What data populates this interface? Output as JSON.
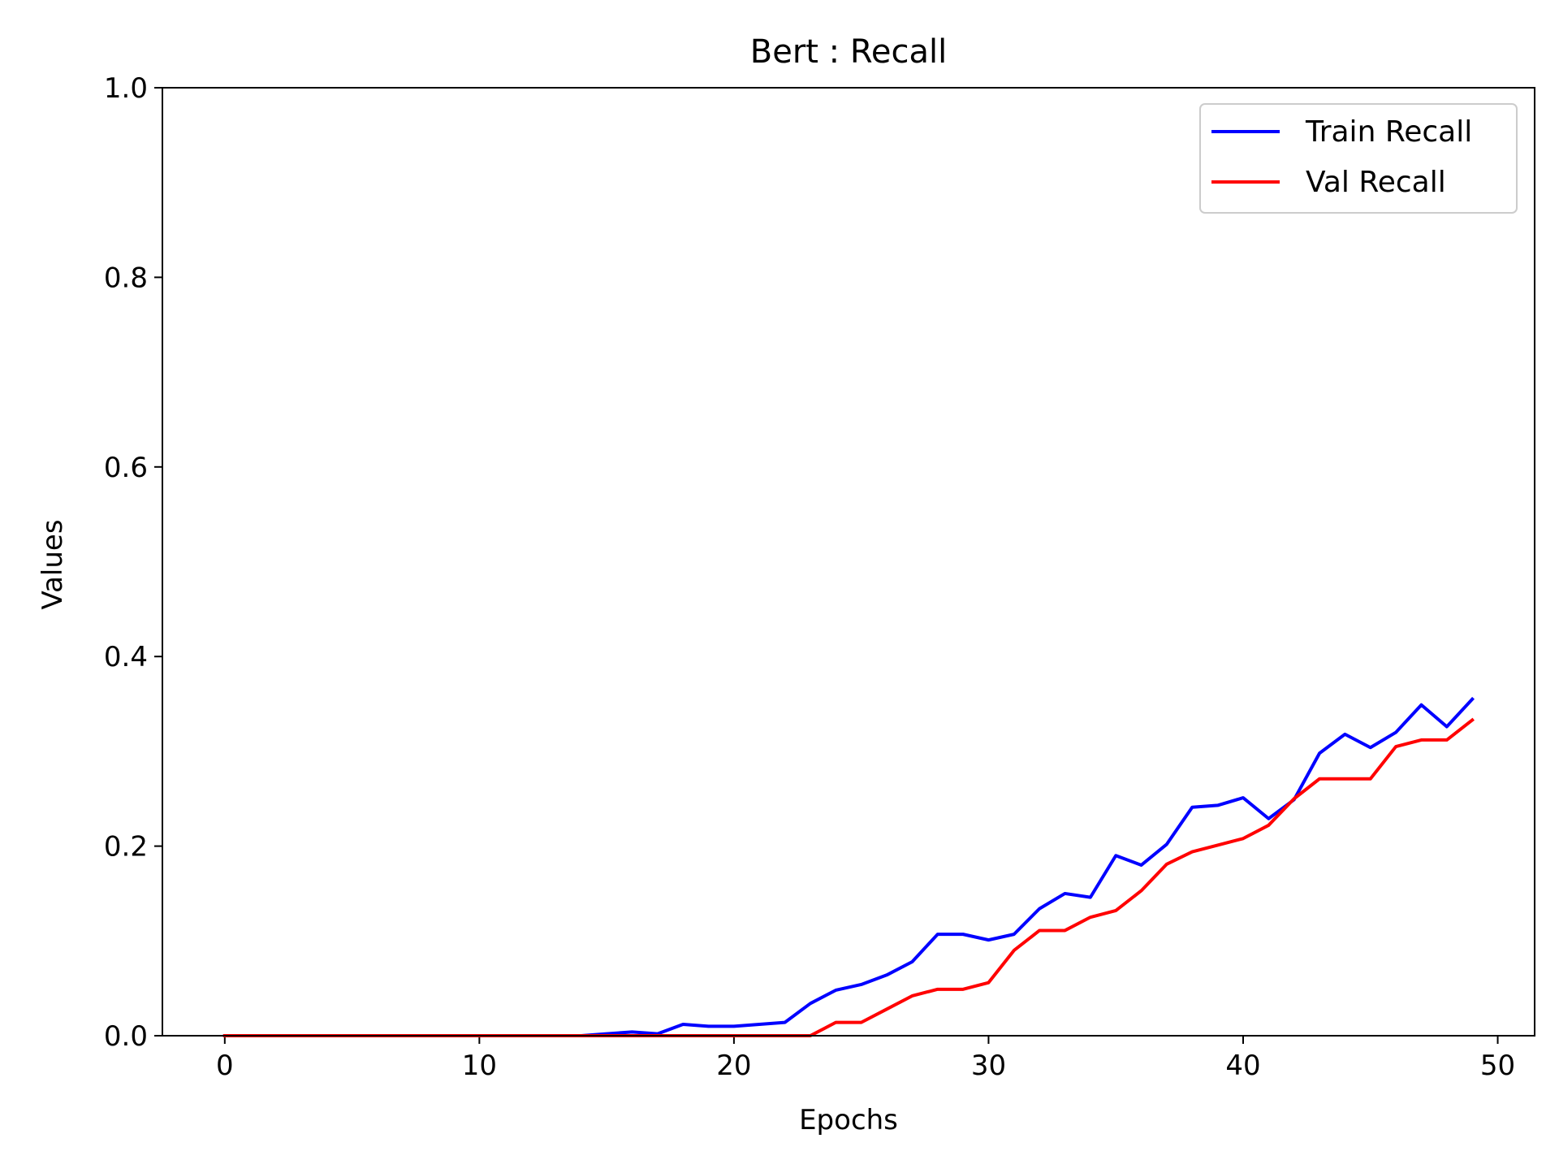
{
  "chart_data": {
    "type": "line",
    "title": "Bert : Recall",
    "xlabel": "Epochs",
    "ylabel": "Values",
    "xlim": [
      -2.45,
      51.45
    ],
    "ylim": [
      0.0,
      1.0
    ],
    "x_ticks": [
      0,
      10,
      20,
      30,
      40,
      50
    ],
    "x_tick_labels": [
      "0",
      "10",
      "20",
      "30",
      "40",
      "50"
    ],
    "y_ticks": [
      0.0,
      0.2,
      0.4,
      0.6,
      0.8,
      1.0
    ],
    "y_tick_labels": [
      "0.0",
      "0.2",
      "0.4",
      "0.6",
      "0.8",
      "1.0"
    ],
    "grid": false,
    "legend_position": "top-right",
    "x": [
      0,
      1,
      2,
      3,
      4,
      5,
      6,
      7,
      8,
      9,
      10,
      11,
      12,
      13,
      14,
      15,
      16,
      17,
      18,
      19,
      20,
      21,
      22,
      23,
      24,
      25,
      26,
      27,
      28,
      29,
      30,
      31,
      32,
      33,
      34,
      35,
      36,
      37,
      38,
      39,
      40,
      41,
      42,
      43,
      44,
      45,
      46,
      47,
      48,
      49
    ],
    "series": [
      {
        "name": "Train Recall",
        "color": "#0000ff",
        "values": [
          0,
          0,
          0,
          0,
          0,
          0,
          0,
          0,
          0,
          0,
          0,
          0,
          0,
          0,
          0,
          0.002,
          0.004,
          0.002,
          0.012,
          0.01,
          0.01,
          0.012,
          0.014,
          0.034,
          0.048,
          0.054,
          0.064,
          0.078,
          0.107,
          0.107,
          0.101,
          0.107,
          0.134,
          0.15,
          0.146,
          0.19,
          0.18,
          0.202,
          0.241,
          0.243,
          0.251,
          0.229,
          0.249,
          0.298,
          0.318,
          0.304,
          0.32,
          0.349,
          0.326,
          0.355
        ]
      },
      {
        "name": "Val Recall",
        "color": "#ff0000",
        "values": [
          0,
          0,
          0,
          0,
          0,
          0,
          0,
          0,
          0,
          0,
          0,
          0,
          0,
          0,
          0,
          0,
          0,
          0,
          0,
          0,
          0,
          0,
          0,
          0,
          0.014,
          0.014,
          0.028,
          0.042,
          0.049,
          0.049,
          0.056,
          0.09,
          0.111,
          0.111,
          0.125,
          0.132,
          0.153,
          0.181,
          0.194,
          0.201,
          0.208,
          0.222,
          0.25,
          0.271,
          0.271,
          0.271,
          0.305,
          0.312,
          0.312,
          0.333
        ]
      }
    ]
  }
}
